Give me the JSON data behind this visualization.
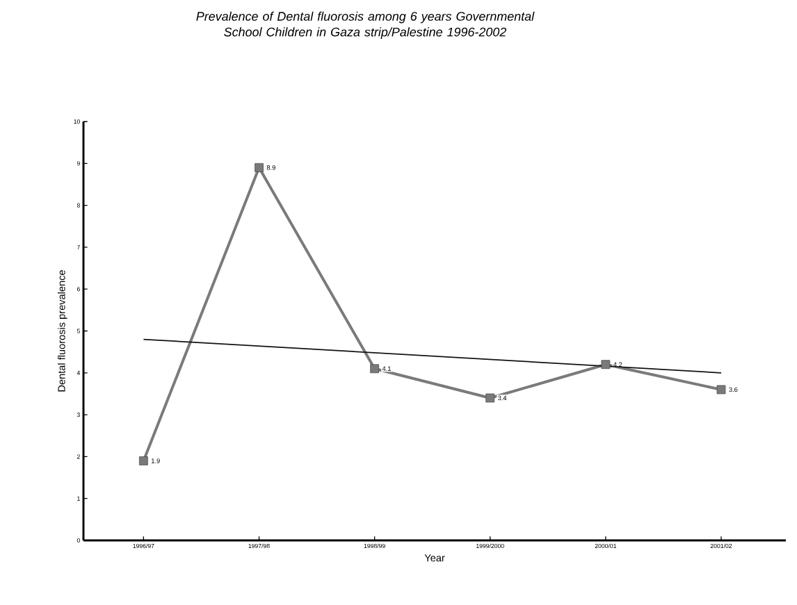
{
  "chart_data": {
    "type": "line",
    "title": "Prevalence of Dental fluorosis among 6 years Governmental School Children in Gaza strip/Palestine 1996-2002",
    "xlabel": "Year",
    "ylabel": "Dental fluorosis prevalence",
    "categories": [
      "1996/97",
      "1997/98",
      "1998/99",
      "1999/2000",
      "2000/01",
      "2001/02"
    ],
    "ylim": [
      0,
      10
    ],
    "yticks": [
      0,
      1,
      2,
      3,
      4,
      5,
      6,
      7,
      8,
      9,
      10
    ],
    "grid": false,
    "series": [
      {
        "color": "#7a7a7a",
        "values": [
          1.9,
          8.9,
          4.1,
          3.4,
          4.2,
          3.6
        ],
        "marker": "square",
        "data_labels": true
      },
      {
        "color": "#111111",
        "x": [
          "1996/97",
          "2001/02"
        ],
        "values": [
          4.8,
          4.0
        ],
        "marker": "none"
      }
    ]
  }
}
